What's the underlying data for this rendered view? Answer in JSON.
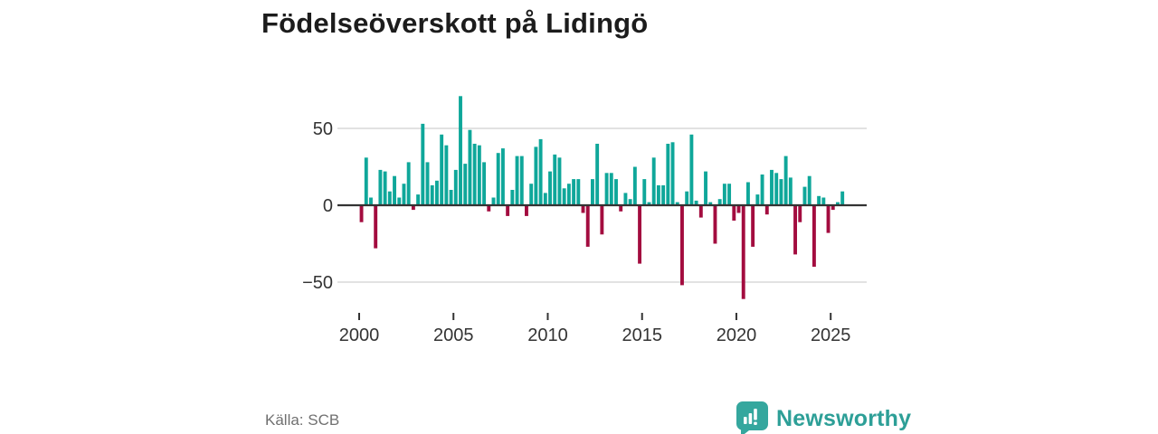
{
  "title": "Födelseöverskott på Lidingö",
  "source": "Källa: SCB",
  "branding": {
    "logo_text": "Newsworthy",
    "logo_icon": "speech-bubble-bar-chart",
    "logo_color": "#2d9f97",
    "logo_icon_color": "#35a79e"
  },
  "colors": {
    "positive": "#0fa79a",
    "negative": "#a30c3f",
    "axis": "#333333",
    "grid": "#d9d9d9",
    "tick_text": "#333333",
    "title_text": "#1c1c1c",
    "muted_text": "#707070"
  },
  "chart_data": {
    "type": "bar",
    "title": "Födelseöverskott på Lidingö",
    "xlabel": "",
    "ylabel": "",
    "frequency": "quarterly",
    "start_period": "2000Q1",
    "end_period": "2025Q3",
    "ylim": [
      -65,
      78
    ],
    "grid": "horizontal",
    "legend": "none",
    "y_ticks": [
      {
        "value": 50,
        "label": "50"
      },
      {
        "value": 0,
        "label": "0"
      },
      {
        "value": -50,
        "label": "−50"
      }
    ],
    "x_ticks": [
      {
        "value": 2000,
        "label": "2000"
      },
      {
        "value": 2005,
        "label": "2005"
      },
      {
        "value": 2010,
        "label": "2010"
      },
      {
        "value": 2015,
        "label": "2015"
      },
      {
        "value": 2020,
        "label": "2020"
      },
      {
        "value": 2025,
        "label": "2025"
      }
    ],
    "series": [
      {
        "year": 2000,
        "q": [
          -11,
          31,
          5,
          -28
        ]
      },
      {
        "year": 2001,
        "q": [
          23,
          22,
          9,
          19
        ]
      },
      {
        "year": 2002,
        "q": [
          5,
          14,
          28,
          -3
        ]
      },
      {
        "year": 2003,
        "q": [
          7,
          53,
          28,
          13
        ]
      },
      {
        "year": 2004,
        "q": [
          16,
          46,
          39,
          10
        ]
      },
      {
        "year": 2005,
        "q": [
          23,
          71,
          27,
          49
        ]
      },
      {
        "year": 2006,
        "q": [
          40,
          39,
          28,
          -4
        ]
      },
      {
        "year": 2007,
        "q": [
          5,
          34,
          37,
          -7
        ]
      },
      {
        "year": 2008,
        "q": [
          10,
          32,
          32,
          -7
        ]
      },
      {
        "year": 2009,
        "q": [
          14,
          38,
          43,
          8
        ]
      },
      {
        "year": 2010,
        "q": [
          22,
          33,
          31,
          11
        ]
      },
      {
        "year": 2011,
        "q": [
          14,
          17,
          17,
          -5
        ]
      },
      {
        "year": 2012,
        "q": [
          -27,
          17,
          40,
          -19
        ]
      },
      {
        "year": 2013,
        "q": [
          21,
          21,
          17,
          -4
        ]
      },
      {
        "year": 2014,
        "q": [
          8,
          4,
          25,
          -38
        ]
      },
      {
        "year": 2015,
        "q": [
          17,
          2,
          31,
          13
        ]
      },
      {
        "year": 2016,
        "q": [
          13,
          40,
          41,
          2
        ]
      },
      {
        "year": 2017,
        "q": [
          -52,
          9,
          46,
          3
        ]
      },
      {
        "year": 2018,
        "q": [
          -8,
          22,
          2,
          -25
        ]
      },
      {
        "year": 2019,
        "q": [
          4,
          14,
          14,
          -10
        ]
      },
      {
        "year": 2020,
        "q": [
          -5,
          -61,
          15,
          -27
        ]
      },
      {
        "year": 2021,
        "q": [
          7,
          20,
          -6,
          23
        ]
      },
      {
        "year": 2022,
        "q": [
          21,
          17,
          32,
          18
        ]
      },
      {
        "year": 2023,
        "q": [
          -32,
          -11,
          12,
          19
        ]
      },
      {
        "year": 2024,
        "q": [
          -40,
          6,
          5,
          -18
        ]
      },
      {
        "year": 2025,
        "q": [
          -3,
          2,
          9
        ]
      }
    ]
  }
}
